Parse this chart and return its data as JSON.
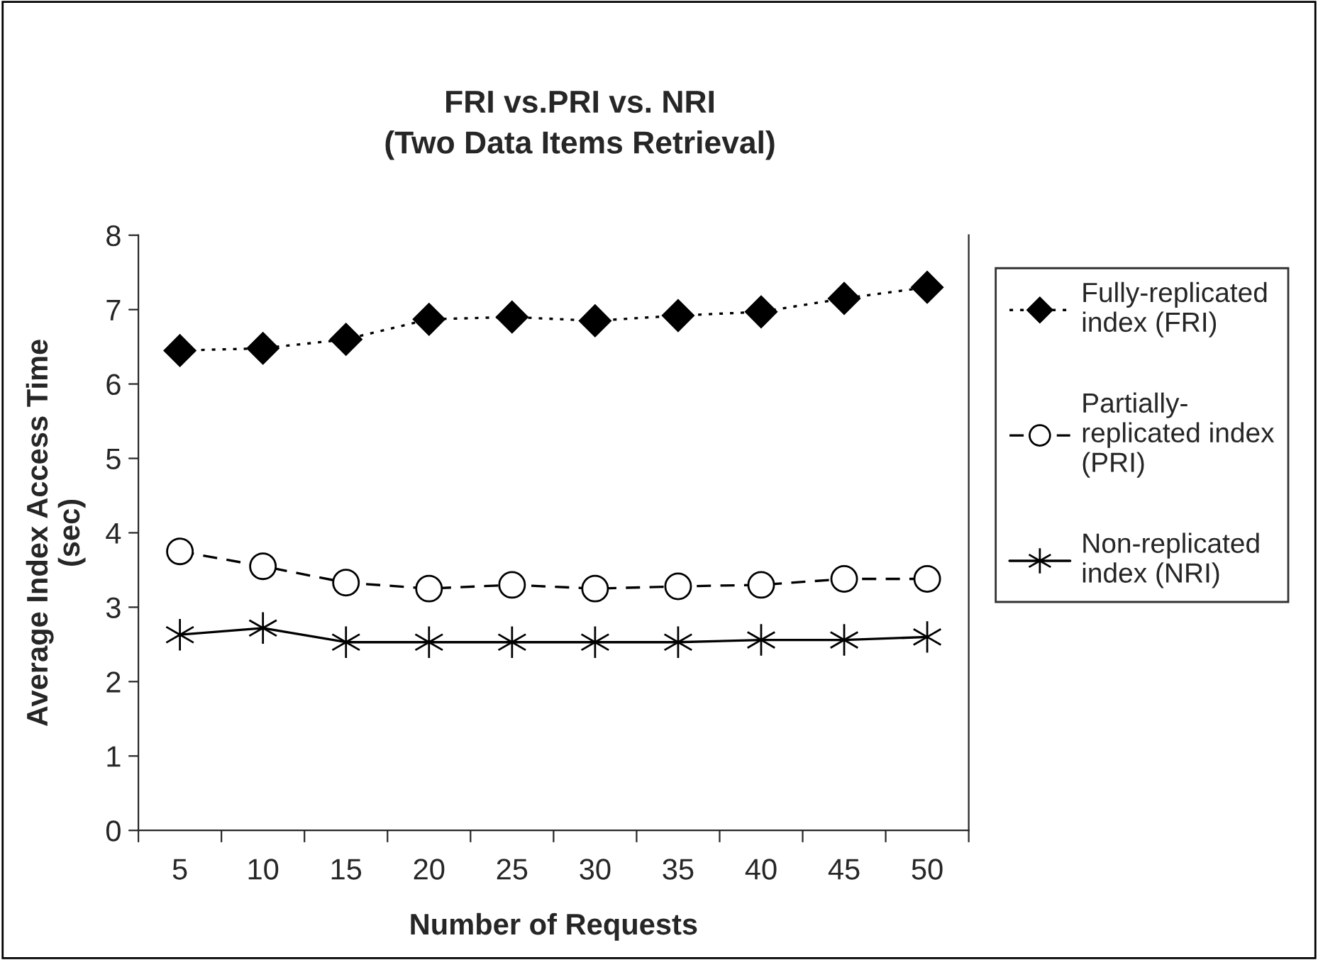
{
  "chart_data": {
    "type": "line",
    "title": "FRI vs.PRI vs. NRI\n(Two Data Items Retrieval)",
    "xlabel": "Number of Requests",
    "ylabel": "Average Index Access Time\n(sec)",
    "categories": [
      "5",
      "10",
      "15",
      "20",
      "25",
      "30",
      "35",
      "40",
      "45",
      "50"
    ],
    "series": [
      {
        "name": "Fully-replicated\nindex (FRI)",
        "color": "#000000",
        "marker": "diamond",
        "line_style": "dotted",
        "values": [
          6.45,
          6.48,
          6.6,
          6.87,
          6.9,
          6.85,
          6.92,
          6.97,
          7.15,
          7.3
        ]
      },
      {
        "name": "Partially-\nreplicated index\n(PRI)",
        "color": "#000000",
        "marker": "circle",
        "line_style": "dashed",
        "values": [
          3.75,
          3.55,
          3.33,
          3.25,
          3.3,
          3.25,
          3.28,
          3.3,
          3.38,
          3.38
        ]
      },
      {
        "name": "Non-replicated\nindex (NRI)",
        "color": "#000000",
        "marker": "cross",
        "line_style": "solid",
        "values": [
          2.63,
          2.72,
          2.53,
          2.53,
          2.53,
          2.53,
          2.53,
          2.56,
          2.56,
          2.6
        ]
      }
    ],
    "ylim": [
      0,
      8
    ],
    "yticks": [
      0,
      1,
      2,
      3,
      4,
      5,
      6,
      7,
      8
    ],
    "grid": false,
    "legend": "right"
  }
}
